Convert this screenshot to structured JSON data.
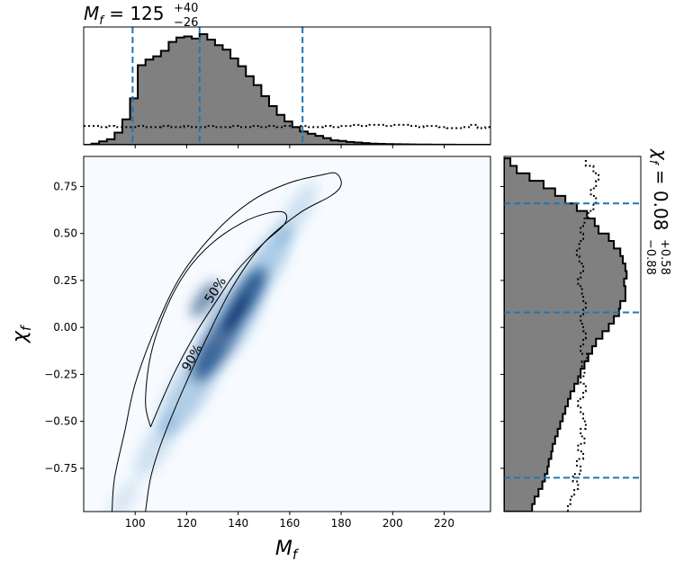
{
  "colors": {
    "hist_fill": "#808080",
    "hist_edge": "#000000",
    "credible_line": "#1f77b4",
    "density_low": "#f7fbff",
    "density_high": "#08306b",
    "contour": "#000000"
  },
  "chart_data": [
    {
      "type": "histogram",
      "panel": "top-marginal",
      "title_main": "M",
      "title_sub": "f",
      "title_value": " = 125",
      "title_sup": "+40",
      "title_inf": "−26",
      "xlim": [
        80,
        238
      ],
      "bin_edges": [
        80,
        83,
        86,
        89,
        92,
        95,
        98,
        101,
        104,
        107,
        110,
        113,
        116,
        119,
        122,
        125,
        128,
        131,
        134,
        137,
        140,
        143,
        146,
        149,
        152,
        155,
        158,
        161,
        164,
        167,
        170,
        173,
        176,
        179,
        182,
        185,
        188,
        191,
        194,
        197,
        200,
        203,
        206,
        209,
        212,
        215,
        218,
        221,
        224,
        227,
        230,
        233,
        236,
        239
      ],
      "posterior_counts": [
        0.0,
        0.01,
        0.03,
        0.05,
        0.11,
        0.23,
        0.42,
        0.72,
        0.77,
        0.8,
        0.85,
        0.93,
        0.97,
        0.98,
        0.96,
        1.0,
        0.95,
        0.9,
        0.86,
        0.78,
        0.71,
        0.62,
        0.54,
        0.44,
        0.35,
        0.27,
        0.21,
        0.16,
        0.12,
        0.1,
        0.08,
        0.06,
        0.04,
        0.035,
        0.025,
        0.02,
        0.015,
        0.01,
        0.008,
        0.006,
        0.005,
        0.004,
        0.003,
        0.002,
        0.002,
        0.001,
        0.001,
        0.001,
        0.0,
        0.0,
        0.0,
        0.0,
        0.0
      ],
      "prior_curve": [
        0.17,
        0.17,
        0.16,
        0.17,
        0.16,
        0.16,
        0.16,
        0.17,
        0.16,
        0.16,
        0.17,
        0.16,
        0.16,
        0.17,
        0.16,
        0.16,
        0.17,
        0.16,
        0.16,
        0.17,
        0.16,
        0.16,
        0.17,
        0.16,
        0.17,
        0.16,
        0.17,
        0.16,
        0.17,
        0.16,
        0.16,
        0.17,
        0.16,
        0.17,
        0.17,
        0.18,
        0.17,
        0.18,
        0.18,
        0.17,
        0.18,
        0.18,
        0.17,
        0.16,
        0.17,
        0.17,
        0.16,
        0.15,
        0.15,
        0.16,
        0.18,
        0.15,
        0.16
      ],
      "credible_lines": [
        99,
        125,
        165
      ]
    },
    {
      "type": "heatmap",
      "panel": "joint",
      "xlabel_main": "M",
      "xlabel_sub": "f",
      "ylabel_main": "χ",
      "ylabel_sub": "f",
      "xlim": [
        80,
        238
      ],
      "ylim": [
        -0.98,
        0.91
      ],
      "xticks": [
        100,
        120,
        140,
        160,
        180,
        200,
        220
      ],
      "yticks": [
        0.75,
        0.5,
        0.25,
        0.0,
        -0.25,
        -0.5,
        -0.75
      ],
      "ytick_labels": [
        "0.75",
        "0.50",
        "0.25",
        "0.00",
        "−0.25",
        "−0.50",
        "−0.75"
      ],
      "density_ridge": {
        "x_at_y_top": 172,
        "y_top": 0.82,
        "x_at_y_bottom": 94,
        "y_bottom": -0.95,
        "peak_x": 127,
        "peak_y": 0.15
      },
      "contour_labels": [
        "50%",
        "90%"
      ],
      "contour_50": [
        [
          106,
          -0.53
        ],
        [
          104,
          -0.4
        ],
        [
          106,
          -0.15
        ],
        [
          112,
          0.1
        ],
        [
          120,
          0.3
        ],
        [
          130,
          0.45
        ],
        [
          142,
          0.56
        ],
        [
          152,
          0.61
        ],
        [
          158,
          0.61
        ],
        [
          158,
          0.55
        ],
        [
          150,
          0.45
        ],
        [
          140,
          0.31
        ],
        [
          132,
          0.15
        ],
        [
          124,
          -0.02
        ],
        [
          116,
          -0.22
        ],
        [
          110,
          -0.4
        ],
        [
          106,
          -0.53
        ]
      ],
      "contour_90": [
        [
          91,
          -0.98
        ],
        [
          92,
          -0.8
        ],
        [
          96,
          -0.55
        ],
        [
          100,
          -0.3
        ],
        [
          108,
          0.0
        ],
        [
          118,
          0.28
        ],
        [
          132,
          0.52
        ],
        [
          146,
          0.68
        ],
        [
          160,
          0.77
        ],
        [
          172,
          0.81
        ],
        [
          178,
          0.82
        ],
        [
          180,
          0.76
        ],
        [
          176,
          0.7
        ],
        [
          164,
          0.61
        ],
        [
          150,
          0.45
        ],
        [
          138,
          0.22
        ],
        [
          128,
          -0.05
        ],
        [
          118,
          -0.35
        ],
        [
          110,
          -0.62
        ],
        [
          106,
          -0.8
        ],
        [
          104,
          -0.98
        ]
      ]
    },
    {
      "type": "histogram",
      "panel": "right-marginal",
      "orientation": "horizontal",
      "title_main": "χ",
      "title_sub": "f",
      "title_value": " = 0.08",
      "title_sup": "+0.58",
      "title_inf": "−0.88",
      "ylim": [
        -0.98,
        0.91
      ],
      "bin_edges": [
        -0.98,
        -0.94,
        -0.9,
        -0.86,
        -0.82,
        -0.78,
        -0.74,
        -0.7,
        -0.66,
        -0.62,
        -0.58,
        -0.54,
        -0.5,
        -0.46,
        -0.42,
        -0.38,
        -0.34,
        -0.3,
        -0.26,
        -0.22,
        -0.18,
        -0.14,
        -0.1,
        -0.06,
        -0.02,
        0.02,
        0.06,
        0.1,
        0.14,
        0.18,
        0.22,
        0.26,
        0.3,
        0.34,
        0.38,
        0.42,
        0.46,
        0.5,
        0.54,
        0.58,
        0.62,
        0.66,
        0.7,
        0.74,
        0.78,
        0.82,
        0.86,
        0.9
      ],
      "posterior_counts": [
        0.22,
        0.24,
        0.27,
        0.3,
        0.32,
        0.34,
        0.35,
        0.37,
        0.38,
        0.4,
        0.42,
        0.44,
        0.46,
        0.48,
        0.5,
        0.52,
        0.55,
        0.58,
        0.6,
        0.63,
        0.66,
        0.69,
        0.72,
        0.77,
        0.82,
        0.86,
        0.9,
        0.91,
        0.95,
        0.95,
        0.94,
        0.96,
        0.95,
        0.93,
        0.91,
        0.86,
        0.82,
        0.74,
        0.71,
        0.65,
        0.57,
        0.48,
        0.4,
        0.31,
        0.2,
        0.1,
        0.05
      ],
      "prior_curve": [
        0.5,
        0.52,
        0.55,
        0.58,
        0.54,
        0.6,
        0.57,
        0.62,
        0.58,
        0.63,
        0.6,
        0.64,
        0.62,
        0.6,
        0.58,
        0.62,
        0.64,
        0.6,
        0.63,
        0.61,
        0.65,
        0.6,
        0.62,
        0.64,
        0.62,
        0.6,
        0.62,
        0.64,
        0.62,
        0.61,
        0.58,
        0.6,
        0.62,
        0.59,
        0.57,
        0.59,
        0.62,
        0.6,
        0.63,
        0.66,
        0.7,
        0.72,
        0.68,
        0.72,
        0.74,
        0.7,
        0.64
      ],
      "credible_lines": [
        -0.8,
        0.08,
        0.66
      ]
    }
  ]
}
